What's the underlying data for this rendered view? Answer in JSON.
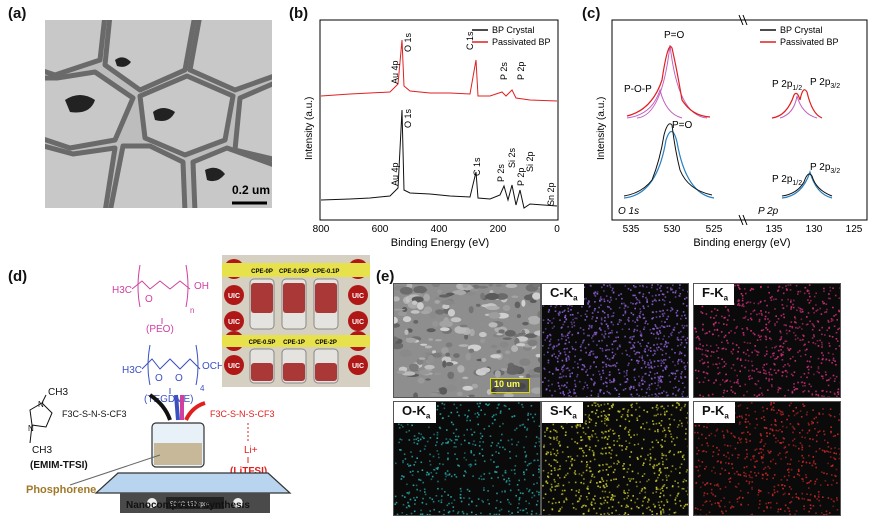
{
  "panels": {
    "a": {
      "label": "(a)",
      "scale_bar": "0.2 um"
    },
    "b": {
      "label": "(b)",
      "ylabel": "Intensity (a.u.)",
      "xlabel": "Binding Energy (eV)",
      "xticks": [
        "800",
        "600",
        "400",
        "200",
        "0"
      ],
      "legend": [
        {
          "name": "BP Crystal",
          "color": "#111111"
        },
        {
          "name": "Passivated BP",
          "color": "#e02020"
        }
      ],
      "peaks_top": [
        "Au 4p",
        "O 1s",
        "C 1s",
        "P 2s",
        "P 2p"
      ],
      "peaks_bottom": [
        "Au 4p",
        "O 1s",
        "C 1s",
        "P 2s",
        "Si 2s",
        "P 2p",
        "Si 2p",
        "Sn 2p"
      ]
    },
    "c": {
      "label": "(c)",
      "ylabel": "Intensity (a.u.)",
      "xlabel": "Binding energy (eV)",
      "xticks": [
        "535",
        "530",
        "525",
        "135",
        "130",
        "125"
      ],
      "legend": [
        {
          "name": "BP Crystal",
          "color": "#111111"
        },
        {
          "name": "Passivated BP",
          "color": "#e02020"
        }
      ],
      "top_labels": [
        "P=O",
        "P-O-P"
      ],
      "bottom_label": "P=O",
      "p2p_half": "P 2p",
      "p2p_half_sub": "1/2",
      "p2p_32": "P 2p",
      "p2p_32_sub": "3/2",
      "region_o1s": "O 1s",
      "region_p2p": "P 2p"
    },
    "d": {
      "label": "(d)",
      "peo_label": "(PEO)",
      "tegdme_label": "(TEGDME)",
      "emim_label": "(EMIM-TFSI)",
      "litfsi_label": "(LiTFSI)",
      "phosphorene": "Phosphorene",
      "caption": "Nanocomposite synthesis",
      "photo_labels_top": [
        "CPE-0P",
        "CPE-0.05P",
        "CPE-0.1P"
      ],
      "photo_labels_bottom": [
        "CPE-0.5P",
        "CPE-1P",
        "CPE-2P"
      ],
      "uic": "UIC",
      "stirrer_display": "50 °C   150 rpm",
      "chem": {
        "peo_h3c": "H3C",
        "peo_o": "O",
        "peo_oh": "OH",
        "peo_n": "n",
        "teg_h3c": "H3C",
        "teg_o1": "O",
        "teg_o2": "O",
        "teg_och3": "OCH3",
        "teg_n": "4",
        "emim_ch3_top": "CH3",
        "emim_n1": "N",
        "emim_n2": "N",
        "emim_ch3_bot": "CH3",
        "emim_anion": "F3C-S-N-S-CF3",
        "lit_anion": "F3C-S-N-S-CF3",
        "lit_li": "Li+",
        "plus": "+",
        "minus": "-",
        "o": "O"
      }
    },
    "e": {
      "label": "(e)",
      "scale_bar": "10 um",
      "maps": [
        {
          "el": "C-K",
          "sub": "a",
          "color": "#8a5fd0"
        },
        {
          "el": "F-K",
          "sub": "a",
          "color": "#d0307a"
        },
        {
          "el": "O-K",
          "sub": "a",
          "color": "#2aa8a8"
        },
        {
          "el": "S-K",
          "sub": "a",
          "color": "#c8c830"
        },
        {
          "el": "P-K",
          "sub": "a",
          "color": "#c82828"
        }
      ]
    }
  }
}
